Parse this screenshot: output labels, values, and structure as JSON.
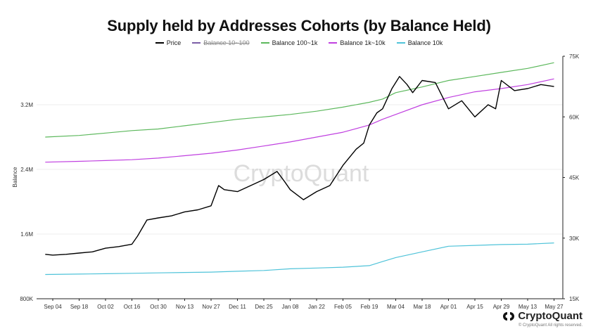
{
  "chart_data": {
    "type": "line",
    "title": "Supply held by Addresses Cohorts (by Balance Held)",
    "ylabel": "Balance",
    "watermark": "CryptoQuant",
    "x_ticks": [
      "Sep 04",
      "Sep 18",
      "Oct 02",
      "Oct 16",
      "Oct 30",
      "Nov 13",
      "Nov 27",
      "Dec 11",
      "Dec 25",
      "Jan 08",
      "Jan 22",
      "Feb 05",
      "Feb 19",
      "Mar 04",
      "Mar 18",
      "Apr 01",
      "Apr 15",
      "Apr 29",
      "May 13",
      "May 27"
    ],
    "y_left": {
      "ylim": [
        800000,
        3800000
      ],
      "ticks": [
        800000,
        1600000,
        2400000,
        3200000
      ],
      "tick_labels": [
        "800K",
        "1.6M",
        "2.4M",
        "3.2M"
      ]
    },
    "y_right": {
      "ylim": [
        15000,
        75000
      ],
      "ticks": [
        15000,
        30000,
        45000,
        60000,
        75000
      ],
      "tick_labels": [
        "15K",
        "30K",
        "45K",
        "60K",
        "75K"
      ]
    },
    "legend": [
      {
        "name": "Price",
        "color": "#000000",
        "visible": true
      },
      {
        "name": "Balance 10~100",
        "color": "#7b5ea7",
        "visible": false
      },
      {
        "name": "Balance 100~1k",
        "color": "#5cb85c",
        "visible": true
      },
      {
        "name": "Balance 1k~10k",
        "color": "#c040e0",
        "visible": true
      },
      {
        "name": "Balance 10k",
        "color": "#4fc3d9",
        "visible": true
      }
    ],
    "series": [
      {
        "name": "Balance 100~1k",
        "axis": "left",
        "color": "#5cb85c",
        "x": [
          -4,
          14,
          28,
          42,
          56,
          70,
          84,
          98,
          112,
          126,
          140,
          154,
          168,
          175,
          182,
          196,
          210,
          224,
          238,
          252,
          266
        ],
        "values": [
          2800000,
          2820000,
          2850000,
          2880000,
          2900000,
          2940000,
          2980000,
          3020000,
          3050000,
          3080000,
          3120000,
          3170000,
          3230000,
          3270000,
          3350000,
          3420000,
          3500000,
          3550000,
          3600000,
          3650000,
          3720000
        ]
      },
      {
        "name": "Balance 1k~10k",
        "axis": "left",
        "color": "#c040e0",
        "x": [
          -4,
          14,
          28,
          42,
          56,
          70,
          84,
          98,
          112,
          126,
          140,
          154,
          168,
          175,
          182,
          196,
          210,
          224,
          238,
          252,
          266
        ],
        "values": [
          2490000,
          2500000,
          2510000,
          2520000,
          2540000,
          2570000,
          2600000,
          2640000,
          2690000,
          2740000,
          2800000,
          2860000,
          2950000,
          3020000,
          3080000,
          3200000,
          3290000,
          3360000,
          3400000,
          3450000,
          3520000
        ]
      },
      {
        "name": "Balance 10k",
        "axis": "left",
        "color": "#4fc3d9",
        "x": [
          -4,
          14,
          28,
          42,
          56,
          70,
          84,
          98,
          112,
          126,
          140,
          154,
          168,
          175,
          182,
          196,
          210,
          224,
          238,
          252,
          266
        ],
        "values": [
          1100000,
          1105000,
          1110000,
          1115000,
          1120000,
          1125000,
          1130000,
          1140000,
          1150000,
          1170000,
          1180000,
          1190000,
          1210000,
          1260000,
          1310000,
          1380000,
          1450000,
          1460000,
          1470000,
          1475000,
          1490000
        ]
      },
      {
        "name": "Price",
        "axis": "right",
        "color": "#000000",
        "x": [
          -4,
          0,
          7,
          14,
          21,
          28,
          35,
          42,
          45,
          50,
          56,
          63,
          70,
          77,
          84,
          88,
          91,
          98,
          105,
          112,
          119,
          123,
          126,
          133,
          140,
          147,
          154,
          161,
          165,
          168,
          172,
          175,
          180,
          184,
          188,
          191,
          196,
          203,
          210,
          217,
          224,
          231,
          235,
          238,
          245,
          252,
          259,
          266
        ],
        "values": [
          26000,
          25800,
          26000,
          26300,
          26600,
          27500,
          27900,
          28500,
          30500,
          34500,
          35000,
          35500,
          36500,
          37000,
          38000,
          43000,
          42000,
          41500,
          43000,
          44500,
          46500,
          44000,
          42000,
          39500,
          41500,
          43000,
          48000,
          52000,
          53500,
          58000,
          61000,
          62000,
          67000,
          70000,
          68000,
          66000,
          69000,
          68500,
          62000,
          64000,
          60000,
          63000,
          62000,
          69000,
          66500,
          67000,
          68000,
          67500
        ]
      }
    ]
  },
  "brand": {
    "name": "CryptoQuant",
    "copyright": "© CryptoQuant All rights reserved."
  }
}
